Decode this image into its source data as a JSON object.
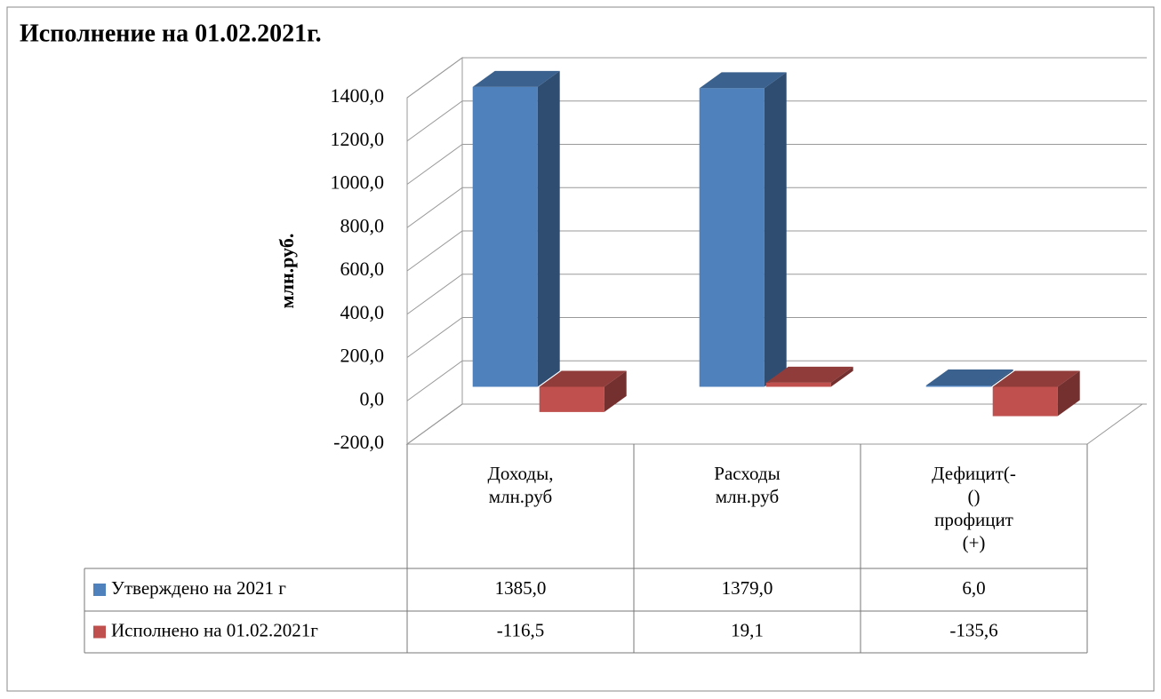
{
  "chart_data": {
    "type": "bar3d",
    "title": "Исполнение на 01.02.2021г.",
    "y_label": "млн.руб.",
    "categories": [
      "Доходы, млн.руб",
      "Расходы млн.руб",
      "Дефицит(-() профицит (+)"
    ],
    "series": [
      {
        "name": "Утверждено на 2021 г",
        "color": "#4f81bd",
        "values": [
          1385.0,
          1379.0,
          6.0
        ],
        "value_labels": [
          "1385,0",
          "1379,0",
          "6,0"
        ]
      },
      {
        "name": "Исполнено на 01.02.2021г",
        "color": "#c0504d",
        "values": [
          -116.5,
          19.1,
          -135.6
        ],
        "value_labels": [
          "-116,5",
          "19,1",
          "-135,6"
        ]
      }
    ],
    "ylim": [
      -200,
      1400
    ],
    "yticks": [
      {
        "value": -200,
        "label": "-200,0"
      },
      {
        "value": 0,
        "label": "0,0"
      },
      {
        "value": 200,
        "label": "200,0"
      },
      {
        "value": 400,
        "label": "400,0"
      },
      {
        "value": 600,
        "label": "600,0"
      },
      {
        "value": 800,
        "label": "800,0"
      },
      {
        "value": 1000,
        "label": "1000,0"
      },
      {
        "value": 1200,
        "label": "1200,0"
      },
      {
        "value": 1400,
        "label": "1400,0"
      }
    ],
    "grid": true
  }
}
